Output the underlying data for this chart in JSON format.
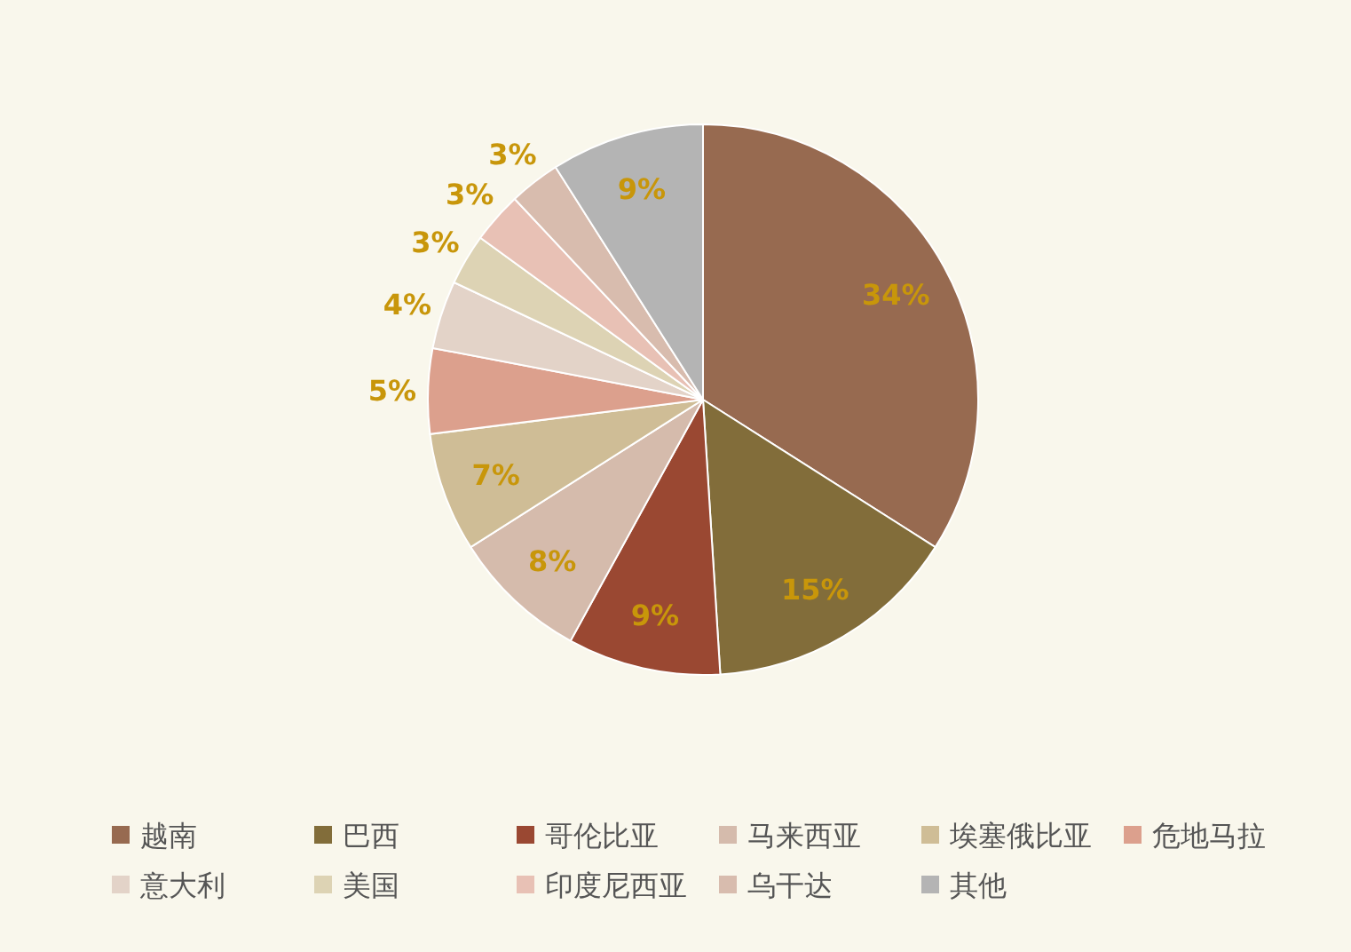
{
  "chart_data": {
    "type": "pie",
    "categories": [
      "越南",
      "巴西",
      "哥伦比亚",
      "马来西亚",
      "埃塞俄比亚",
      "危地马拉",
      "意大利",
      "美国",
      "印度尼西亚",
      "乌干达",
      "其他"
    ],
    "values": [
      34,
      15,
      9,
      8,
      7,
      5,
      4,
      3,
      3,
      3,
      9
    ],
    "colors": [
      "#976a50",
      "#826d3a",
      "#9a4832",
      "#d5bbac",
      "#cfbd96",
      "#dca08d",
      "#e3d3c8",
      "#ddd3b4",
      "#e8c1b5",
      "#d8bcae",
      "#b4b4b4"
    ],
    "value_labels": [
      "34%",
      "15%",
      "9%",
      "8%",
      "7%",
      "5%",
      "4%",
      "3%",
      "3%",
      "3%",
      "9%"
    ],
    "legend": "bottom"
  }
}
